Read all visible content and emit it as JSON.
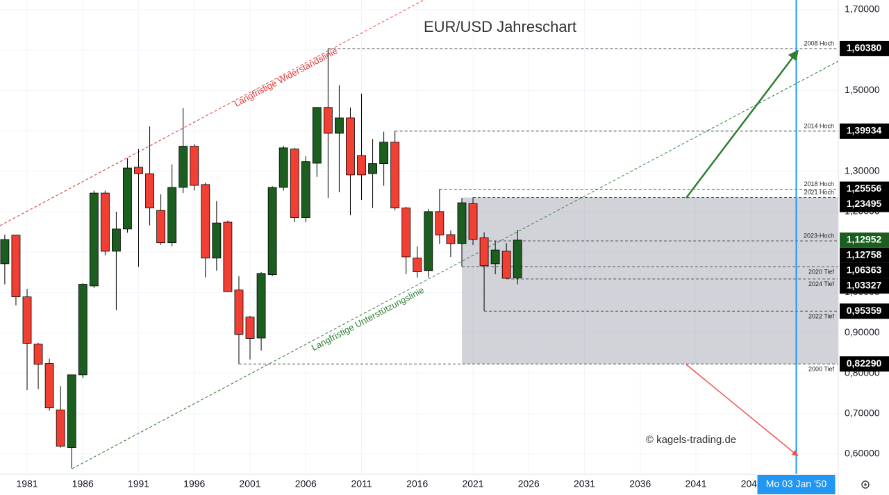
{
  "chart_data": {
    "type": "candlestick",
    "title": "EUR/USD Jahreschart",
    "watermark": "© kagels-trading.de",
    "x": [
      1979,
      1980,
      1981,
      1982,
      1983,
      1984,
      1985,
      1986,
      1987,
      1988,
      1989,
      1990,
      1991,
      1992,
      1993,
      1994,
      1995,
      1996,
      1997,
      1998,
      1999,
      2000,
      2001,
      2002,
      2003,
      2004,
      2005,
      2006,
      2007,
      2008,
      2009,
      2010,
      2011,
      2012,
      2013,
      2014,
      2015,
      2016,
      2017,
      2018,
      2019,
      2020,
      2021,
      2022,
      2023,
      2024,
      2025
    ],
    "open": [
      1.071,
      1.142,
      0.989,
      0.872,
      0.824,
      0.709,
      0.616,
      0.796,
      1.016,
      1.246,
      1.102,
      1.157,
      1.31,
      1.294,
      1.203,
      1.123,
      1.26,
      1.362,
      1.267,
      1.085,
      1.174,
      1.006,
      0.939,
      0.887,
      1.044,
      1.26,
      1.355,
      1.185,
      1.32,
      1.458,
      1.394,
      1.432,
      1.339,
      1.294,
      1.319,
      1.372,
      1.209,
      1.085,
      1.054,
      1.2,
      1.143,
      1.121,
      1.22,
      1.135,
      1.071,
      1.102,
      1.036
    ],
    "high": [
      1.143,
      1.143,
      1.009,
      0.875,
      0.836,
      0.768,
      0.796,
      1.023,
      1.252,
      1.252,
      1.2,
      1.332,
      1.355,
      1.411,
      1.243,
      1.317,
      1.456,
      1.367,
      1.272,
      1.226,
      1.178,
      1.04,
      0.942,
      1.05,
      1.263,
      1.363,
      1.358,
      1.337,
      1.458,
      1.604,
      1.513,
      1.458,
      1.492,
      1.38,
      1.398,
      1.399,
      1.212,
      1.114,
      1.207,
      1.256,
      1.153,
      1.234,
      1.235,
      1.149,
      1.128,
      1.122,
      1.155
    ],
    "low": [
      1.02,
      0.968,
      0.758,
      0.761,
      0.707,
      0.616,
      0.564,
      0.788,
      1.011,
      1.092,
      0.956,
      1.148,
      1.063,
      1.166,
      1.118,
      1.114,
      1.246,
      1.252,
      1.037,
      1.054,
      1.001,
      0.823,
      0.834,
      0.856,
      1.04,
      1.252,
      1.174,
      1.174,
      1.286,
      1.234,
      1.248,
      1.191,
      1.229,
      1.209,
      1.264,
      1.203,
      1.045,
      1.037,
      1.037,
      1.12,
      1.088,
      1.064,
      1.117,
      0.954,
      1.045,
      1.033,
      1.02
    ],
    "close": [
      1.131,
      0.989,
      0.874,
      0.822,
      0.714,
      0.619,
      0.796,
      1.02,
      1.246,
      1.102,
      1.157,
      1.308,
      1.294,
      1.209,
      1.123,
      1.26,
      1.362,
      1.265,
      1.085,
      1.172,
      1.002,
      0.896,
      0.886,
      1.047,
      1.26,
      1.358,
      1.185,
      1.324,
      1.458,
      1.394,
      1.432,
      1.291,
      1.291,
      1.319,
      1.372,
      1.209,
      1.088,
      1.051,
      1.2,
      1.142,
      1.121,
      1.222,
      1.131,
      1.066,
      1.105,
      1.035,
      1.12952
    ],
    "up_color": "#1b5e20",
    "down_color": "#f23f33",
    "xlim": [
      1978.57,
      2053.77
    ],
    "ylim": [
      0.55,
      1.724
    ],
    "xticks": [
      1981,
      1986,
      1991,
      1996,
      2001,
      2006,
      2011,
      2016,
      2021,
      2026,
      2031,
      2036,
      2041,
      2046
    ],
    "yticks": [
      {
        "value": 0.6,
        "label": "0,60000"
      },
      {
        "value": 0.7,
        "label": "0,70000"
      },
      {
        "value": 0.8,
        "label": "0,80000"
      },
      {
        "value": 0.9,
        "label": "0,90000"
      },
      {
        "value": 1.0,
        "label": "1,00000"
      },
      {
        "value": 1.1,
        "label": "1,10000"
      },
      {
        "value": 1.2,
        "label": "1,20000"
      },
      {
        "value": 1.3,
        "label": "1,30000"
      },
      {
        "value": 1.4,
        "label": "1,40000"
      },
      {
        "value": 1.5,
        "label": "1,50000"
      },
      {
        "value": 1.6,
        "label": "1,60000"
      },
      {
        "value": 1.7,
        "label": "1,70000"
      }
    ],
    "grid": true,
    "levels": {
      "names": [
        "2008 Hoch",
        "2014 Hoch",
        "2018 Hoch",
        "2021 Hoch",
        "2023-Hoch",
        "2020 Tief",
        "2024 Tief",
        "2022 Tief",
        "2000 Tief"
      ],
      "values": [
        1.6038,
        1.39934,
        1.25556,
        1.23495,
        1.12758,
        1.06363,
        1.03327,
        0.95359,
        0.8229
      ],
      "value_labels": [
        "1,60380",
        "1,39934",
        "1,25556",
        "1,23495",
        "1,12758",
        "1,06363",
        "1,03327",
        "0,95359",
        "0,82290"
      ],
      "starts": [
        2008,
        2014,
        2018,
        2021,
        2022,
        2020,
        2024,
        2022,
        2000
      ]
    },
    "last_price": {
      "value": 1.12952,
      "value_label": "1,12952",
      "color": "#1b5e20"
    },
    "trendlines": [
      "Langfristige Widerstandslinie",
      "Langfristige Unterstützungslinie"
    ],
    "cursor": {
      "x": 2050.0,
      "label": "Mo 03 Jan '50",
      "color": "#2196f3"
    }
  }
}
